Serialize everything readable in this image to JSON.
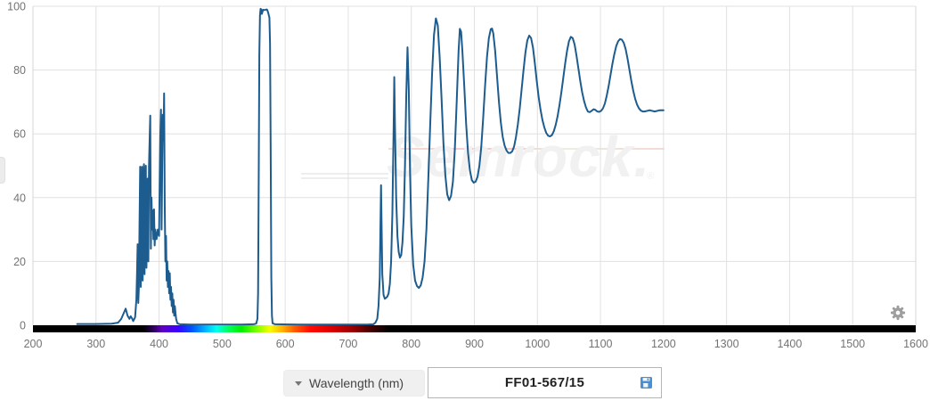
{
  "watermark": {
    "text": "Semrock.",
    "reg": "®"
  },
  "controls": {
    "axis_dropdown": {
      "label": "Wavelength (nm)"
    },
    "part_box": {
      "label": "FF01-567/15"
    }
  },
  "icons": {
    "settings": "gear-icon",
    "save": "floppy-disk-icon",
    "dropdown": "caret-down-icon"
  },
  "colors": {
    "line": "#1d5c8e",
    "grid": "#e0e0e0",
    "axis_boundary": "#d6d6d6",
    "tick_text": "#737373",
    "save_icon_blue": "#4a8fd3",
    "gear_gray": "#9e9e9e"
  },
  "chart_data": {
    "type": "line",
    "title": "",
    "xlabel": "Wavelength (nm)",
    "ylabel": "",
    "xlim": [
      200,
      1600
    ],
    "ylim": [
      0,
      100
    ],
    "grid": true,
    "legend": "none",
    "x_ticks": [
      200,
      300,
      400,
      500,
      600,
      700,
      800,
      900,
      1000,
      1100,
      1200,
      1300,
      1400,
      1500,
      1600
    ],
    "y_ticks": [
      0,
      20,
      40,
      60,
      80,
      100
    ],
    "series": [
      {
        "name": "FF01-567/15",
        "color": "#1d5c8e",
        "points": [
          [
            270,
            0.4
          ],
          [
            300,
            0.4
          ],
          [
            325,
            0.5
          ],
          [
            335,
            0.8
          ],
          [
            340,
            2
          ],
          [
            344,
            3.8
          ],
          [
            347,
            5.2
          ],
          [
            350,
            3
          ],
          [
            353,
            2
          ],
          [
            355,
            2.8
          ],
          [
            357,
            2.2
          ],
          [
            359,
            1.3
          ],
          [
            362,
            2.5
          ],
          [
            364,
            8
          ],
          [
            365,
            16
          ],
          [
            366,
            25.4
          ],
          [
            367,
            7
          ],
          [
            368,
            12
          ],
          [
            369,
            32
          ],
          [
            370,
            49.7
          ],
          [
            371,
            12
          ],
          [
            372,
            30
          ],
          [
            373,
            49.7
          ],
          [
            374,
            14
          ],
          [
            375,
            36
          ],
          [
            376,
            50.5
          ],
          [
            377,
            16
          ],
          [
            378,
            40
          ],
          [
            379,
            50
          ],
          [
            380,
            18
          ],
          [
            381,
            30
          ],
          [
            382,
            46
          ],
          [
            383,
            20
          ],
          [
            384,
            50
          ],
          [
            385,
            58
          ],
          [
            386,
            65.7
          ],
          [
            387,
            24
          ],
          [
            388,
            40
          ],
          [
            389,
            30
          ],
          [
            390,
            36
          ],
          [
            391,
            27
          ],
          [
            392,
            36.3
          ],
          [
            393,
            25
          ],
          [
            394,
            30
          ],
          [
            396,
            27
          ],
          [
            398,
            30
          ],
          [
            400,
            28
          ],
          [
            401,
            45
          ],
          [
            402,
            60
          ],
          [
            403,
            67.6
          ],
          [
            404,
            30
          ],
          [
            405,
            50
          ],
          [
            406,
            66
          ],
          [
            407,
            58
          ],
          [
            408,
            72.7
          ],
          [
            409,
            38
          ],
          [
            410,
            20
          ],
          [
            411,
            28
          ],
          [
            412,
            14
          ],
          [
            413,
            20
          ],
          [
            414,
            12
          ],
          [
            415,
            17
          ],
          [
            416,
            10
          ],
          [
            417,
            16.3
          ],
          [
            418,
            8
          ],
          [
            419,
            12
          ],
          [
            420,
            6
          ],
          [
            421,
            10
          ],
          [
            422,
            4
          ],
          [
            423,
            8
          ],
          [
            424,
            3
          ],
          [
            425,
            6
          ],
          [
            427,
            2
          ],
          [
            429,
            0.6
          ],
          [
            433,
            0.3
          ],
          [
            450,
            0.2
          ],
          [
            490,
            0.2
          ],
          [
            530,
            0.2
          ],
          [
            550,
            0.3
          ],
          [
            554,
            0.5
          ],
          [
            556,
            2
          ],
          [
            557,
            10
          ],
          [
            558,
            45
          ],
          [
            559,
            85
          ],
          [
            560,
            97
          ],
          [
            561,
            99.2
          ],
          [
            562,
            99
          ],
          [
            563,
            97.6
          ],
          [
            564,
            98.3
          ],
          [
            565,
            98.9
          ],
          [
            567,
            98.8
          ],
          [
            569,
            98.9
          ],
          [
            571,
            99
          ],
          [
            572,
            98.6
          ],
          [
            573,
            98
          ],
          [
            574,
            97.2
          ],
          [
            575,
            96.4
          ],
          [
            576,
            88
          ],
          [
            577,
            55
          ],
          [
            578,
            15
          ],
          [
            579,
            3
          ],
          [
            580,
            0.6
          ],
          [
            584,
            0.3
          ],
          [
            620,
            0.2
          ],
          [
            680,
            0.2
          ],
          [
            730,
            0.2
          ],
          [
            740,
            0.3
          ],
          [
            743,
            0.8
          ],
          [
            746,
            2
          ],
          [
            748,
            6
          ],
          [
            750,
            15
          ],
          [
            751,
            30
          ],
          [
            752,
            43.9
          ],
          [
            753,
            30
          ],
          [
            754,
            16
          ],
          [
            756,
            9.5
          ],
          [
            758,
            8.3
          ],
          [
            760,
            8.6
          ],
          [
            762,
            9
          ],
          [
            764,
            10
          ],
          [
            766,
            13
          ],
          [
            768,
            20
          ],
          [
            770,
            35
          ],
          [
            772,
            62
          ],
          [
            773,
            77.8
          ],
          [
            774,
            64
          ],
          [
            776,
            40
          ],
          [
            778,
            28
          ],
          [
            780,
            23
          ],
          [
            782,
            21.2
          ],
          [
            784,
            22
          ],
          [
            786,
            26
          ],
          [
            788,
            34
          ],
          [
            790,
            50
          ],
          [
            792,
            72
          ],
          [
            794,
            87.1
          ],
          [
            796,
            74
          ],
          [
            798,
            48
          ],
          [
            800,
            31
          ],
          [
            803,
            19
          ],
          [
            806,
            14
          ],
          [
            809,
            12.3
          ],
          [
            812,
            11.7
          ],
          [
            815,
            12.5
          ],
          [
            818,
            15
          ],
          [
            821,
            20
          ],
          [
            824,
            30
          ],
          [
            827,
            46
          ],
          [
            830,
            63
          ],
          [
            833,
            79
          ],
          [
            836,
            91
          ],
          [
            839,
            96.2
          ],
          [
            842,
            94
          ],
          [
            845,
            84
          ],
          [
            848,
            71
          ],
          [
            851,
            57
          ],
          [
            854,
            47
          ],
          [
            857,
            41
          ],
          [
            860,
            39.2
          ],
          [
            863,
            40.5
          ],
          [
            866,
            45
          ],
          [
            869,
            55
          ],
          [
            872,
            70
          ],
          [
            875,
            86
          ],
          [
            877,
            92.9
          ],
          [
            879,
            92
          ],
          [
            881,
            86
          ],
          [
            884,
            75
          ],
          [
            887,
            63
          ],
          [
            890,
            54
          ],
          [
            893,
            48.5
          ],
          [
            896,
            45.5
          ],
          [
            899,
            44.7
          ],
          [
            902,
            45
          ],
          [
            905,
            46.5
          ],
          [
            908,
            50
          ],
          [
            911,
            56
          ],
          [
            914,
            65
          ],
          [
            917,
            75
          ],
          [
            920,
            84
          ],
          [
            923,
            90
          ],
          [
            926,
            92.8
          ],
          [
            928,
            93
          ],
          [
            930,
            91.5
          ],
          [
            933,
            86
          ],
          [
            936,
            78
          ],
          [
            939,
            70
          ],
          [
            942,
            63.5
          ],
          [
            945,
            59
          ],
          [
            948,
            56.3
          ],
          [
            951,
            54.8
          ],
          [
            954,
            54
          ],
          [
            957,
            54
          ],
          [
            960,
            54.5
          ],
          [
            963,
            56
          ],
          [
            966,
            59
          ],
          [
            969,
            63
          ],
          [
            972,
            68
          ],
          [
            975,
            74
          ],
          [
            978,
            80
          ],
          [
            981,
            85.5
          ],
          [
            984,
            89.3
          ],
          [
            987,
            90.8
          ],
          [
            990,
            90
          ],
          [
            993,
            87
          ],
          [
            996,
            82
          ],
          [
            999,
            76.5
          ],
          [
            1002,
            71.5
          ],
          [
            1005,
            67.5
          ],
          [
            1008,
            64.3
          ],
          [
            1011,
            62
          ],
          [
            1014,
            60.3
          ],
          [
            1017,
            59.4
          ],
          [
            1020,
            59.2
          ],
          [
            1023,
            59.6
          ],
          [
            1026,
            60.8
          ],
          [
            1029,
            62.8
          ],
          [
            1032,
            65.5
          ],
          [
            1035,
            69
          ],
          [
            1038,
            73
          ],
          [
            1041,
            77.5
          ],
          [
            1044,
            82
          ],
          [
            1047,
            86
          ],
          [
            1050,
            89
          ],
          [
            1053,
            90.4
          ],
          [
            1056,
            90
          ],
          [
            1059,
            88
          ],
          [
            1062,
            84.5
          ],
          [
            1065,
            80.5
          ],
          [
            1068,
            76.5
          ],
          [
            1071,
            73
          ],
          [
            1074,
            70.3
          ],
          [
            1077,
            68.3
          ],
          [
            1080,
            67
          ],
          [
            1083,
            66.8
          ],
          [
            1086,
            67.2
          ],
          [
            1089,
            67.7
          ],
          [
            1092,
            67.5
          ],
          [
            1095,
            67
          ],
          [
            1098,
            66.9
          ],
          [
            1101,
            67.2
          ],
          [
            1104,
            68
          ],
          [
            1107,
            69.5
          ],
          [
            1110,
            72
          ],
          [
            1113,
            75
          ],
          [
            1116,
            78.5
          ],
          [
            1119,
            82
          ],
          [
            1122,
            85
          ],
          [
            1125,
            87.5
          ],
          [
            1128,
            89
          ],
          [
            1131,
            89.7
          ],
          [
            1134,
            89.5
          ],
          [
            1137,
            88.5
          ],
          [
            1140,
            86.5
          ],
          [
            1143,
            83.5
          ],
          [
            1146,
            80
          ],
          [
            1149,
            76.5
          ],
          [
            1152,
            73.5
          ],
          [
            1155,
            71
          ],
          [
            1158,
            69.2
          ],
          [
            1161,
            68
          ],
          [
            1164,
            67.3
          ],
          [
            1167,
            67
          ],
          [
            1170,
            67
          ],
          [
            1174,
            67.2
          ],
          [
            1178,
            67.4
          ],
          [
            1182,
            67.2
          ],
          [
            1186,
            67
          ],
          [
            1190,
            67.2
          ],
          [
            1194,
            67.4
          ],
          [
            1197,
            67.4
          ],
          [
            1200,
            67.4
          ]
        ]
      }
    ]
  }
}
